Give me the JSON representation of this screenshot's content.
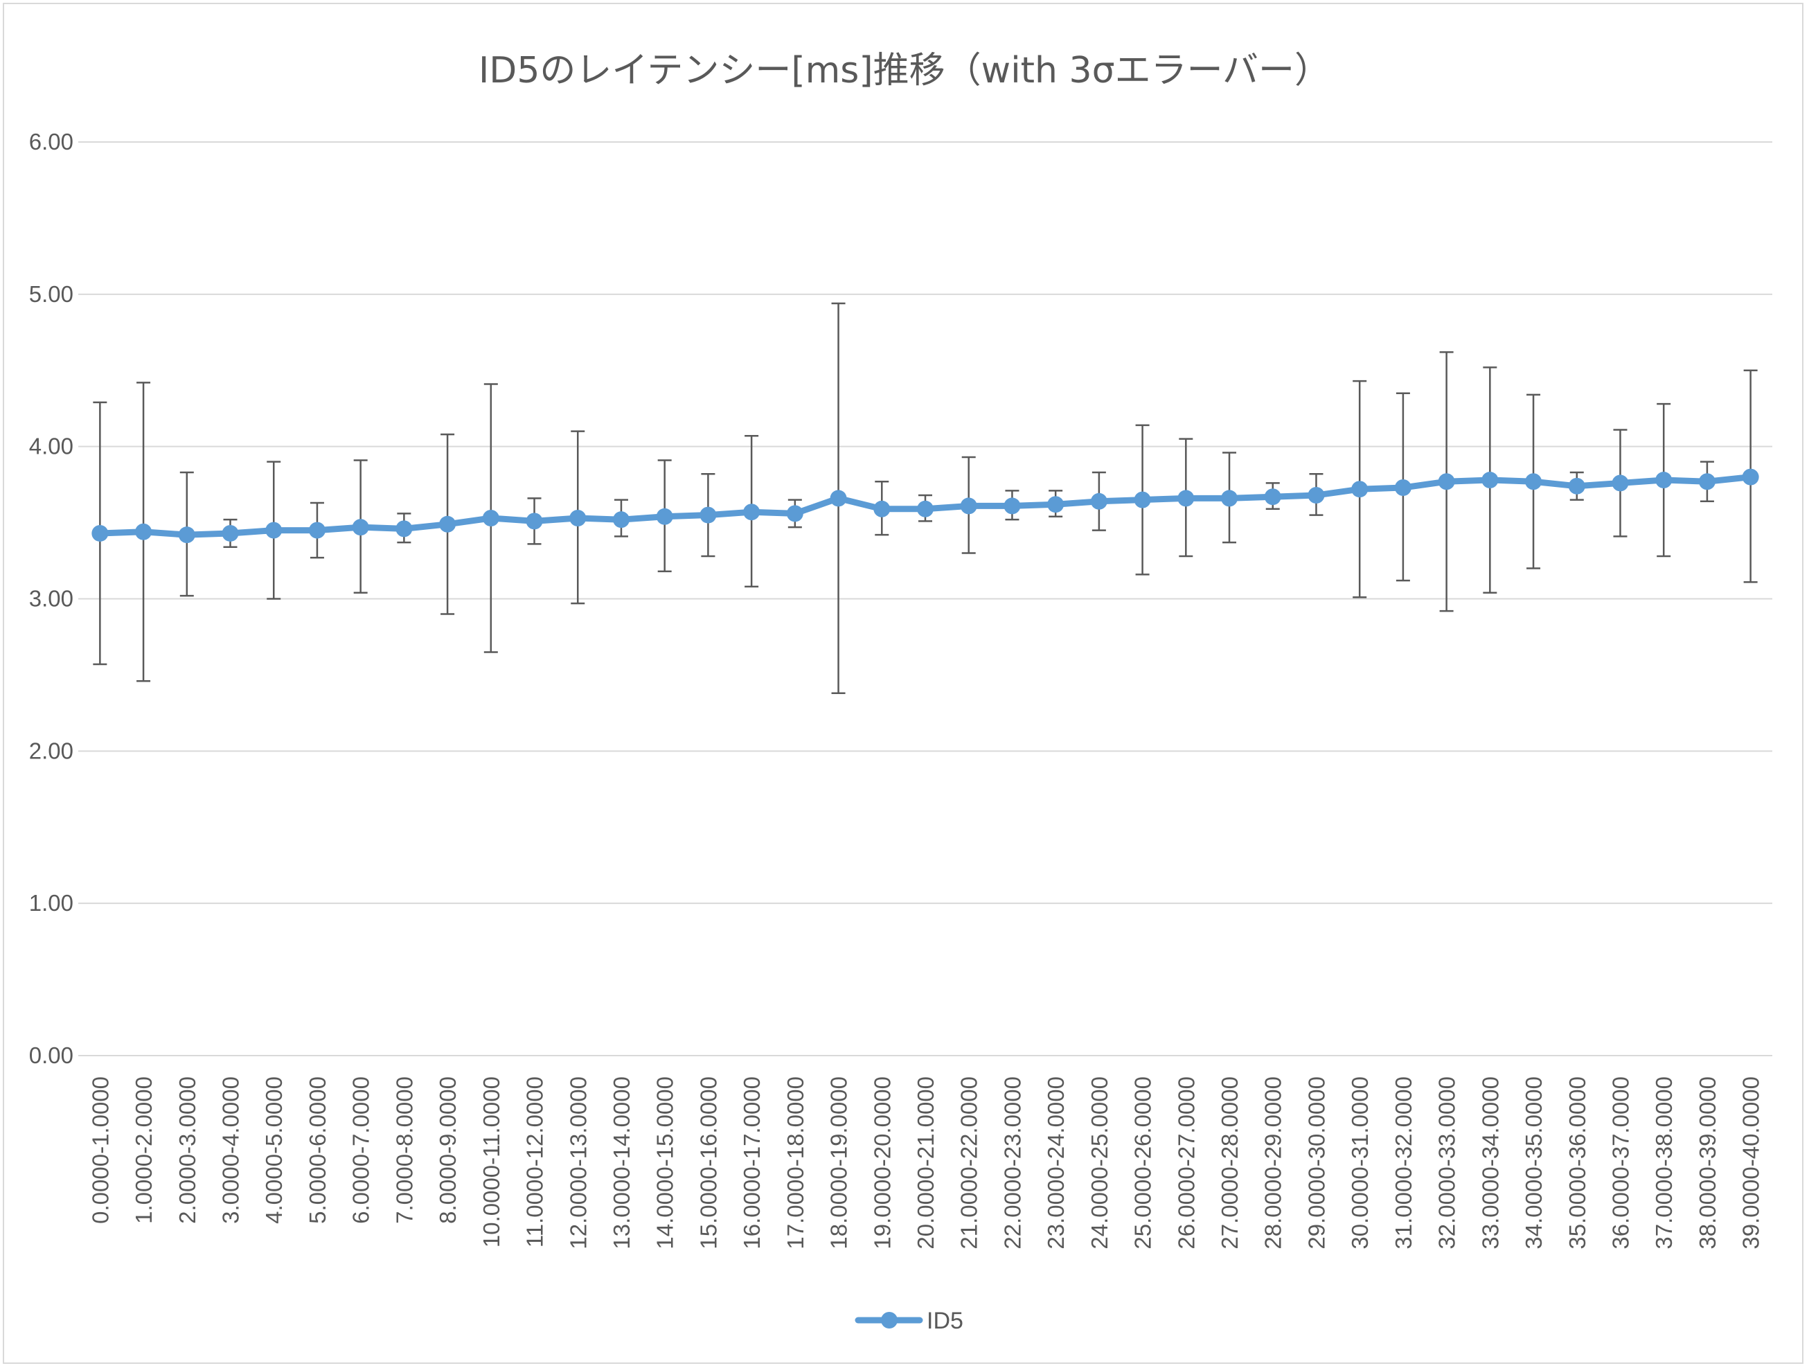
{
  "chart_data": {
    "type": "line",
    "title": "ID5のレイテンシー[ms]推移（with 3σエラーバー）",
    "xlabel": "",
    "ylabel": "",
    "ylim": [
      0,
      6
    ],
    "y_ticks": [
      "0.00",
      "1.00",
      "2.00",
      "3.00",
      "4.00",
      "5.00",
      "6.00"
    ],
    "grid": true,
    "legend_position": "bottom",
    "categories": [
      "0.0000-1.0000",
      "1.0000-2.0000",
      "2.0000-3.0000",
      "3.0000-4.0000",
      "4.0000-5.0000",
      "5.0000-6.0000",
      "6.0000-7.0000",
      "7.0000-8.0000",
      "8.0000-9.0000",
      "10.0000-11.0000",
      "11.0000-12.0000",
      "12.0000-13.0000",
      "13.0000-14.0000",
      "14.0000-15.0000",
      "15.0000-16.0000",
      "16.0000-17.0000",
      "17.0000-18.0000",
      "18.0000-19.0000",
      "19.0000-20.0000",
      "20.0000-21.0000",
      "21.0000-22.0000",
      "22.0000-23.0000",
      "23.0000-24.0000",
      "24.0000-25.0000",
      "25.0000-26.0000",
      "26.0000-27.0000",
      "27.0000-28.0000",
      "28.0000-29.0000",
      "29.0000-30.0000",
      "30.0000-31.0000",
      "31.0000-32.0000",
      "32.0000-33.0000",
      "33.0000-34.0000",
      "34.0000-35.0000",
      "35.0000-36.0000",
      "36.0000-37.0000",
      "37.0000-38.0000",
      "38.0000-39.0000",
      "39.0000-40.0000"
    ],
    "series": [
      {
        "name": "ID5",
        "color": "#5b9bd5",
        "values": [
          3.43,
          3.44,
          3.42,
          3.43,
          3.45,
          3.45,
          3.47,
          3.46,
          3.49,
          3.53,
          3.51,
          3.53,
          3.52,
          3.54,
          3.55,
          3.57,
          3.56,
          3.66,
          3.59,
          3.59,
          3.61,
          3.61,
          3.62,
          3.64,
          3.65,
          3.66,
          3.66,
          3.67,
          3.68,
          3.72,
          3.73,
          3.77,
          3.78,
          3.77,
          3.74,
          3.76,
          3.78,
          3.77,
          3.8
        ],
        "error_upper": [
          4.29,
          4.42,
          3.83,
          3.52,
          3.9,
          3.63,
          3.91,
          3.56,
          4.08,
          4.41,
          3.66,
          4.1,
          3.65,
          3.91,
          3.82,
          4.07,
          3.65,
          4.94,
          3.77,
          3.68,
          3.93,
          3.71,
          3.71,
          3.83,
          4.14,
          4.05,
          3.96,
          3.76,
          3.82,
          4.43,
          4.35,
          4.62,
          4.52,
          4.34,
          3.83,
          4.11,
          4.28,
          3.9,
          4.5
        ],
        "error_lower": [
          2.57,
          2.46,
          3.02,
          3.34,
          3.0,
          3.27,
          3.04,
          3.37,
          2.9,
          2.65,
          3.36,
          2.97,
          3.41,
          3.18,
          3.28,
          3.08,
          3.47,
          2.38,
          3.42,
          3.51,
          3.3,
          3.52,
          3.54,
          3.45,
          3.16,
          3.28,
          3.37,
          3.59,
          3.55,
          3.01,
          3.12,
          2.92,
          3.04,
          3.2,
          3.65,
          3.41,
          3.28,
          3.64,
          3.11
        ]
      }
    ],
    "colors": {
      "series": "#5b9bd5",
      "error_bar": "#595959",
      "grid": "#d9d9d9",
      "text": "#595959"
    }
  }
}
